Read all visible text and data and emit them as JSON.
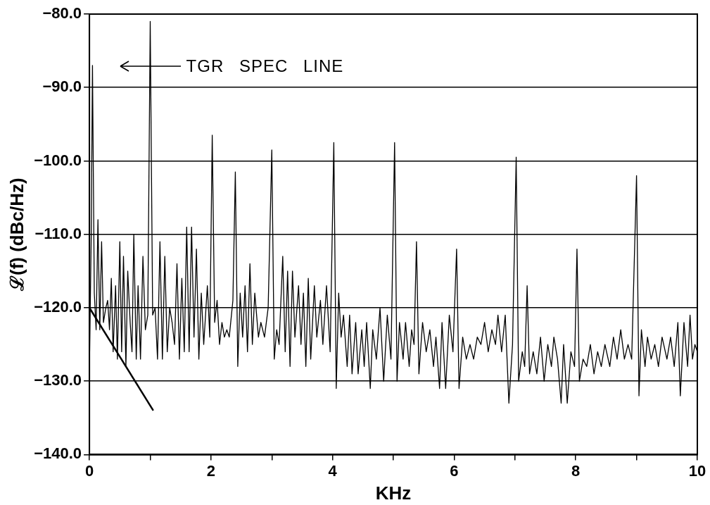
{
  "chart_data": {
    "type": "line",
    "xlabel": "KHz",
    "ylabel": "ℒ(f) (dBc/Hz)",
    "xlim": [
      0,
      10
    ],
    "xticks": [
      0,
      {
        "value": 1,
        "label": null
      },
      2,
      {
        "value": 3,
        "label": null
      },
      4,
      {
        "value": 5,
        "label": null
      },
      6,
      {
        "value": 7,
        "label": null
      },
      8,
      {
        "value": 9,
        "label": null
      },
      10
    ],
    "ylim": [
      -140,
      -80
    ],
    "yticks": [
      {
        "value": -140,
        "label": "−140.0"
      },
      {
        "value": -130,
        "label": "−130.0"
      },
      {
        "value": -120,
        "label": "−120.0"
      },
      {
        "value": -110,
        "label": "−110.0"
      },
      {
        "value": -100,
        "label": "−100.0"
      },
      {
        "value": -90,
        "label": "−90.0"
      },
      {
        "value": -80,
        "label": "−80.0"
      }
    ],
    "grid": "y",
    "legend": false,
    "annotations": [
      "TGR SPEC LINE"
    ],
    "series": [
      {
        "color": "#000000",
        "x": [
          0.0,
          0.03,
          0.05,
          0.08,
          0.11,
          0.14,
          0.17,
          0.2,
          0.23,
          0.27,
          0.3,
          0.33,
          0.36,
          0.39,
          0.43,
          0.46,
          0.5,
          0.53,
          0.56,
          0.6,
          0.63,
          0.67,
          0.7,
          0.73,
          0.77,
          0.8,
          0.84,
          0.88,
          0.92,
          0.96,
          1.0,
          1.04,
          1.08,
          1.12,
          1.16,
          1.2,
          1.24,
          1.28,
          1.32,
          1.36,
          1.4,
          1.44,
          1.48,
          1.52,
          1.56,
          1.6,
          1.64,
          1.68,
          1.72,
          1.76,
          1.8,
          1.84,
          1.88,
          1.94,
          1.98,
          2.02,
          2.06,
          2.1,
          2.14,
          2.18,
          2.22,
          2.26,
          2.3,
          2.36,
          2.4,
          2.44,
          2.48,
          2.52,
          2.56,
          2.6,
          2.64,
          2.68,
          2.72,
          2.78,
          2.82,
          2.88,
          2.94,
          3.0,
          3.04,
          3.08,
          3.12,
          3.18,
          3.22,
          3.26,
          3.3,
          3.34,
          3.38,
          3.44,
          3.48,
          3.52,
          3.56,
          3.6,
          3.64,
          3.7,
          3.74,
          3.8,
          3.84,
          3.9,
          3.96,
          4.02,
          4.06,
          4.1,
          4.14,
          4.18,
          4.24,
          4.28,
          4.32,
          4.38,
          4.42,
          4.48,
          4.52,
          4.56,
          4.62,
          4.66,
          4.72,
          4.78,
          4.84,
          4.9,
          4.96,
          5.02,
          5.06,
          5.1,
          5.16,
          5.2,
          5.26,
          5.3,
          5.34,
          5.38,
          5.42,
          5.48,
          5.54,
          5.6,
          5.66,
          5.7,
          5.76,
          5.8,
          5.86,
          5.92,
          5.98,
          6.04,
          6.08,
          6.14,
          6.2,
          6.26,
          6.32,
          6.38,
          6.44,
          6.5,
          6.56,
          6.62,
          6.68,
          6.72,
          6.78,
          6.84,
          6.9,
          6.96,
          7.02,
          7.06,
          7.12,
          7.16,
          7.2,
          7.24,
          7.3,
          7.36,
          7.42,
          7.48,
          7.54,
          7.6,
          7.64,
          7.7,
          7.76,
          7.8,
          7.86,
          7.92,
          7.98,
          8.02,
          8.06,
          8.12,
          8.18,
          8.24,
          8.3,
          8.36,
          8.42,
          8.48,
          8.56,
          8.62,
          8.68,
          8.74,
          8.8,
          8.86,
          8.92,
          9.0,
          9.04,
          9.08,
          9.14,
          9.18,
          9.24,
          9.3,
          9.36,
          9.42,
          9.5,
          9.56,
          9.62,
          9.68,
          9.72,
          9.78,
          9.84,
          9.88,
          9.92,
          9.96,
          10.0
        ],
        "values": [
          -128,
          -110,
          -87,
          -118,
          -123,
          -108,
          -123,
          -111,
          -122,
          -120,
          -119,
          -123,
          -116,
          -126,
          -117,
          -127,
          -111,
          -126,
          -113,
          -128,
          -115,
          -122,
          -126,
          -110,
          -127,
          -117,
          -127,
          -113,
          -123,
          -121,
          -81,
          -121,
          -120,
          -127,
          -111,
          -127,
          -113,
          -126,
          -120,
          -122,
          -125,
          -114,
          -127,
          -116,
          -126,
          -109,
          -126,
          -109,
          -124,
          -112,
          -127,
          -118,
          -125,
          -117,
          -124,
          -96.5,
          -122,
          -119,
          -125,
          -122,
          -124,
          -123,
          -124,
          -119,
          -101.5,
          -128,
          -118,
          -124,
          -117,
          -126,
          -114,
          -125,
          -118,
          -124,
          -122,
          -124,
          -120,
          -98.5,
          -127,
          -123,
          -125,
          -113,
          -126,
          -115,
          -128,
          -115,
          -124,
          -117,
          -125,
          -118,
          -128,
          -116,
          -127,
          -117,
          -124,
          -119,
          -125,
          -117,
          -126,
          -97.5,
          -131,
          -118,
          -124,
          -121,
          -128,
          -121,
          -129,
          -122,
          -129,
          -123,
          -128,
          -122,
          -131,
          -123,
          -127,
          -120,
          -130,
          -121,
          -127,
          -97.5,
          -130,
          -122,
          -127,
          -122,
          -128,
          -123,
          -125,
          -111,
          -129,
          -122,
          -126,
          -123,
          -128,
          -124,
          -131,
          -122,
          -131,
          -121,
          -126,
          -112,
          -131,
          -124,
          -127,
          -125,
          -127,
          -124,
          -125,
          -122,
          -126,
          -123,
          -125,
          -121,
          -126,
          -121,
          -133,
          -125,
          -99.5,
          -130,
          -126,
          -128,
          -117,
          -129,
          -126,
          -129,
          -124,
          -130,
          -125,
          -128,
          -124,
          -127,
          -133,
          -125,
          -133,
          -126,
          -128,
          -112,
          -130,
          -127,
          -128,
          -125,
          -129,
          -126,
          -128,
          -125,
          -128,
          -124,
          -127,
          -123,
          -127,
          -125,
          -127,
          -102,
          -132,
          -123,
          -128,
          -124,
          -127,
          -125,
          -128,
          -124,
          -127,
          -124,
          -128,
          -122,
          -132,
          -122,
          -128,
          -121,
          -127,
          -125,
          -126
        ]
      },
      {
        "color": "#000000",
        "x": [
          0,
          1.05
        ],
        "values": [
          -120,
          -134
        ]
      }
    ]
  }
}
